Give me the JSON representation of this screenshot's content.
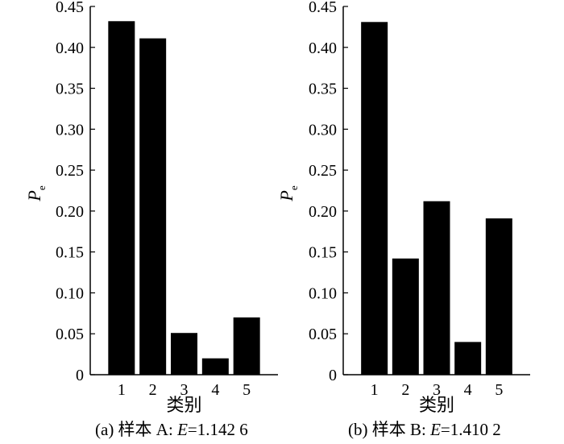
{
  "chart_data": [
    {
      "type": "bar",
      "categories": [
        "1",
        "2",
        "3",
        "4",
        "5"
      ],
      "values": [
        0.432,
        0.411,
        0.051,
        0.02,
        0.07
      ],
      "xlabel": "类别",
      "ylabel_main": "P",
      "ylabel_sub": "e",
      "ylim": [
        0,
        0.45
      ],
      "yticks": [
        "0",
        "0.05",
        "0.10",
        "0.15",
        "0.20",
        "0.25",
        "0.30",
        "0.35",
        "0.40",
        "0.45"
      ],
      "caption_prefix": "(a) 样本 A: ",
      "caption_var": "E",
      "caption_value": "=1.142 6",
      "bar_color": "#000000",
      "grid": false
    },
    {
      "type": "bar",
      "categories": [
        "1",
        "2",
        "3",
        "4",
        "5"
      ],
      "values": [
        0.431,
        0.142,
        0.212,
        0.04,
        0.191
      ],
      "xlabel": "类别",
      "ylabel_main": "P",
      "ylabel_sub": "e",
      "ylim": [
        0,
        0.45
      ],
      "yticks": [
        "0",
        "0.05",
        "0.10",
        "0.15",
        "0.20",
        "0.25",
        "0.30",
        "0.35",
        "0.40",
        "0.45"
      ],
      "caption_prefix": "(b) 样本 B: ",
      "caption_var": "E",
      "caption_value": "=1.410 2",
      "bar_color": "#000000",
      "grid": false
    }
  ]
}
